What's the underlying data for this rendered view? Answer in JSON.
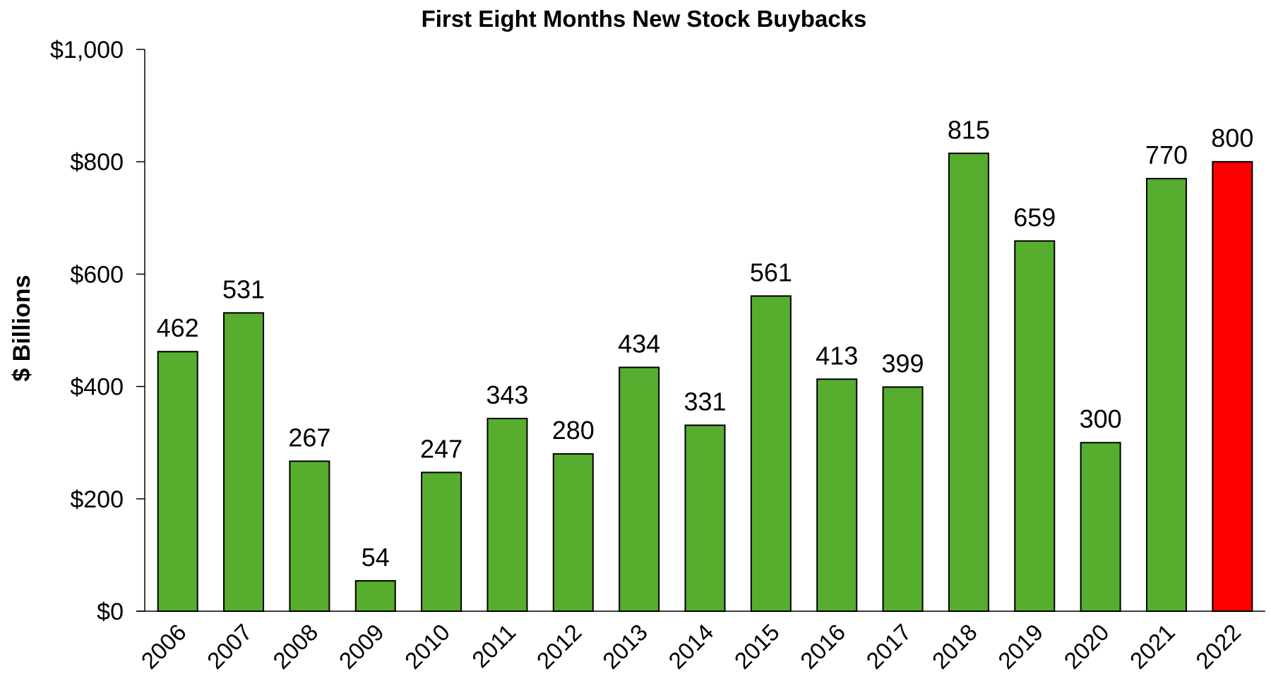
{
  "chart_data": {
    "type": "bar",
    "title": "First Eight Months New Stock Buybacks",
    "xlabel": "",
    "ylabel": "$ Billions",
    "ylim": [
      0,
      1000
    ],
    "yticks": [
      0,
      200,
      400,
      600,
      800,
      1000
    ],
    "ytick_labels": [
      "$0",
      "$200",
      "$400",
      "$600",
      "$800",
      "$1,000"
    ],
    "categories": [
      "2006",
      "2007",
      "2008",
      "2009",
      "2010",
      "2011",
      "2012",
      "2013",
      "2014",
      "2015",
      "2016",
      "2017",
      "2018",
      "2019",
      "2020",
      "2021",
      "2022"
    ],
    "values": [
      462,
      531,
      267,
      54,
      247,
      343,
      280,
      434,
      331,
      561,
      413,
      399,
      815,
      659,
      300,
      770,
      800
    ],
    "data_labels": [
      "462",
      "531",
      "267",
      "54",
      "247",
      "343",
      "280",
      "434",
      "331",
      "561",
      "413",
      "399",
      "815",
      "659",
      "300",
      "770",
      "800"
    ],
    "grid": false,
    "legend": "none",
    "colors": {
      "default_bar": "#57ad2e",
      "highlight_bar": "#ff0000",
      "highlight_category": "2022"
    }
  }
}
